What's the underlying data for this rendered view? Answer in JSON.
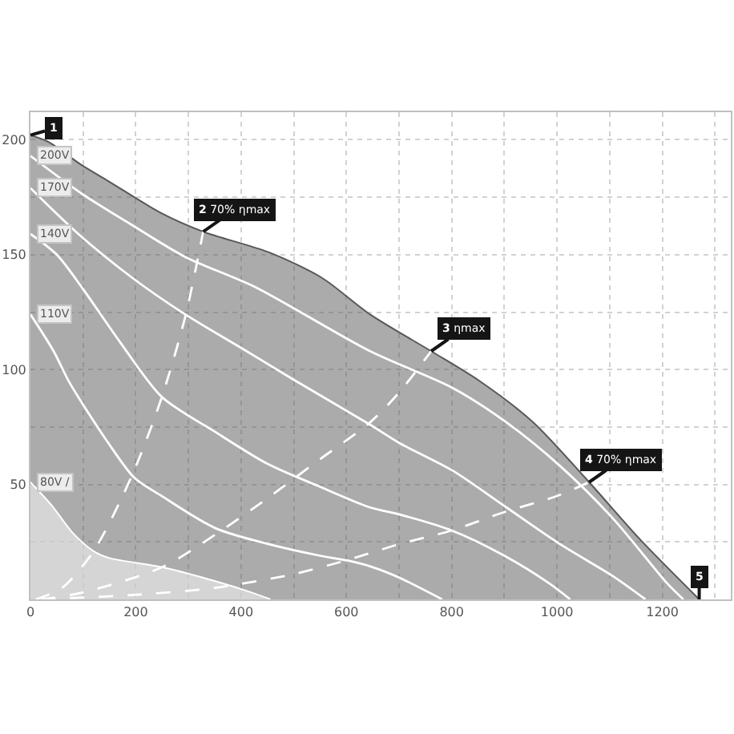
{
  "chart_data": {
    "type": "line",
    "xlim": [
      0,
      1330
    ],
    "ylim": [
      0,
      212
    ],
    "xticks": [
      {
        "value": 0,
        "label": "0"
      },
      {
        "value": 100,
        "label": null
      },
      200,
      {
        "value": 300,
        "label": null
      },
      400,
      {
        "value": 500,
        "label": null
      },
      600,
      {
        "value": 700,
        "label": null
      },
      800,
      {
        "value": 900,
        "label": null
      },
      1000,
      {
        "value": 1100,
        "label": null
      },
      1200,
      {
        "value": 1300,
        "label": null
      }
    ],
    "yticks": [
      {
        "value": 0,
        "label": null
      },
      {
        "value": 25,
        "label": null
      },
      50,
      {
        "value": 75,
        "label": null
      },
      100,
      {
        "value": 125,
        "label": null
      },
      150,
      {
        "value": 175,
        "label": null
      },
      200
    ],
    "grid": true,
    "line_style": "solid",
    "series": [
      {
        "type": "area",
        "color": "#585858",
        "x": [
          0,
          35,
          97,
          148,
          249,
          328,
          453,
          553,
          645,
          761,
          853,
          955,
          1061,
          1158,
          1270
        ],
        "values": [
          202,
          199,
          189,
          182,
          168,
          160,
          151,
          140,
          124,
          108,
          95,
          77,
          51,
          26,
          0
        ]
      },
      {
        "type": "area",
        "name": "80V /",
        "color": "#ffffff",
        "x": [
          0,
          40,
          80,
          120,
          150,
          250,
          350,
          420,
          456
        ],
        "values": [
          51,
          41,
          29,
          21,
          18,
          14,
          8,
          3,
          0
        ]
      },
      {
        "name": "110V",
        "color": "#ffffff",
        "x": [
          0,
          44,
          75,
          148,
          197,
          249,
          351,
          453,
          550,
          600,
          650,
          700,
          782
        ],
        "values": [
          124,
          108,
          94,
          68,
          53,
          45,
          31,
          24,
          19,
          17,
          14,
          9.5,
          0
        ]
      },
      {
        "name": "140V",
        "color": "#ffffff",
        "x": [
          0,
          50,
          100,
          170,
          250,
          350,
          450,
          550,
          645,
          700,
          800,
          900,
          985,
          1025
        ],
        "values": [
          159,
          150,
          135,
          112,
          88,
          73,
          59,
          49,
          40,
          37,
          30,
          19,
          7,
          0
        ]
      },
      {
        "name": "170V",
        "color": "#ffffff",
        "x": [
          0,
          91,
          193,
          294,
          396,
          497,
          645,
          701,
          802,
          904,
          1006,
          1107,
          1168
        ],
        "values": [
          179,
          159,
          140,
          124,
          110,
          96,
          76,
          68,
          56,
          40,
          24,
          10,
          0
        ]
      },
      {
        "name": "200V",
        "color": "#ffffff",
        "x": [
          0,
          101,
          192,
          294,
          426,
          645,
          802,
          904,
          1006,
          1107,
          1209,
          1240
        ],
        "values": [
          193,
          176,
          163,
          149,
          136,
          108,
          92,
          77,
          58,
          35,
          7,
          0
        ]
      },
      {
        "color": "#ffffff",
        "line_style": "dashed",
        "x": [
          10,
          60,
          120,
          193,
          248,
          294,
          328
        ],
        "values": [
          0,
          5,
          21,
          54,
          87,
          123,
          160
        ]
      },
      {
        "color": "#ffffff",
        "line_style": "dashed",
        "x": [
          20,
          100,
          250,
          350,
          450,
          550,
          645,
          700,
          761
        ],
        "values": [
          0,
          3,
          14,
          28,
          44,
          61,
          77,
          90,
          108
        ]
      },
      {
        "color": "#ffffff",
        "line_style": "dashed",
        "x": [
          20,
          200,
          350,
          500,
          600,
          700,
          800,
          900,
          1000,
          1061
        ],
        "values": [
          0,
          2,
          5,
          11,
          17,
          24,
          30,
          38,
          45,
          51
        ]
      }
    ],
    "annotations": [
      {
        "text": "1",
        "x": 0,
        "y": 202
      },
      {
        "text": "2 70% ηmax",
        "x": 328,
        "y": 160
      },
      {
        "text": "3 ηmax",
        "x": 761,
        "y": 108
      },
      {
        "text": "4 70% ηmax",
        "x": 1061,
        "y": 51
      },
      {
        "text": "5",
        "x": 1270,
        "y": 0
      }
    ]
  }
}
